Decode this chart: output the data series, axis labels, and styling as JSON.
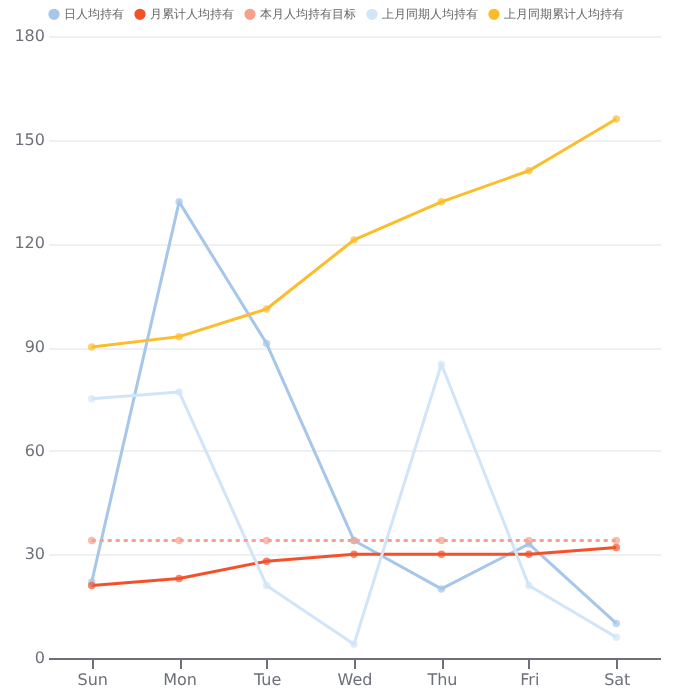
{
  "chart_data": {
    "type": "line",
    "categories": [
      "Sun",
      "Mon",
      "Tue",
      "Wed",
      "Thu",
      "Fri",
      "Sat"
    ],
    "series": [
      {
        "name": "日人均持有",
        "color": "#a6c6ea",
        "values": [
          22,
          132,
          91,
          34,
          20,
          33,
          10
        ]
      },
      {
        "name": "月累计人均持有",
        "color": "#f4512b",
        "values": [
          21,
          23,
          28,
          30,
          30,
          30,
          32
        ]
      },
      {
        "name": "本月人均持有目标",
        "color": "#f7a18c",
        "values": [
          34,
          34,
          34,
          34,
          34,
          34,
          34
        ],
        "line_style": "dotted"
      },
      {
        "name": "上月同期人均持有",
        "color": "#d2e5f8",
        "values": [
          75,
          77,
          21,
          4,
          85,
          21,
          6
        ]
      },
      {
        "name": "上月同期累计人均持有",
        "color": "#fbbd2c",
        "values": [
          90,
          93,
          101,
          121,
          132,
          141,
          156
        ]
      }
    ],
    "ylim": [
      0,
      180
    ],
    "yticks": [
      0,
      30,
      60,
      90,
      120,
      150,
      180
    ],
    "grid": "y",
    "legend": "top",
    "marker": "circle",
    "line_style": "solid"
  }
}
